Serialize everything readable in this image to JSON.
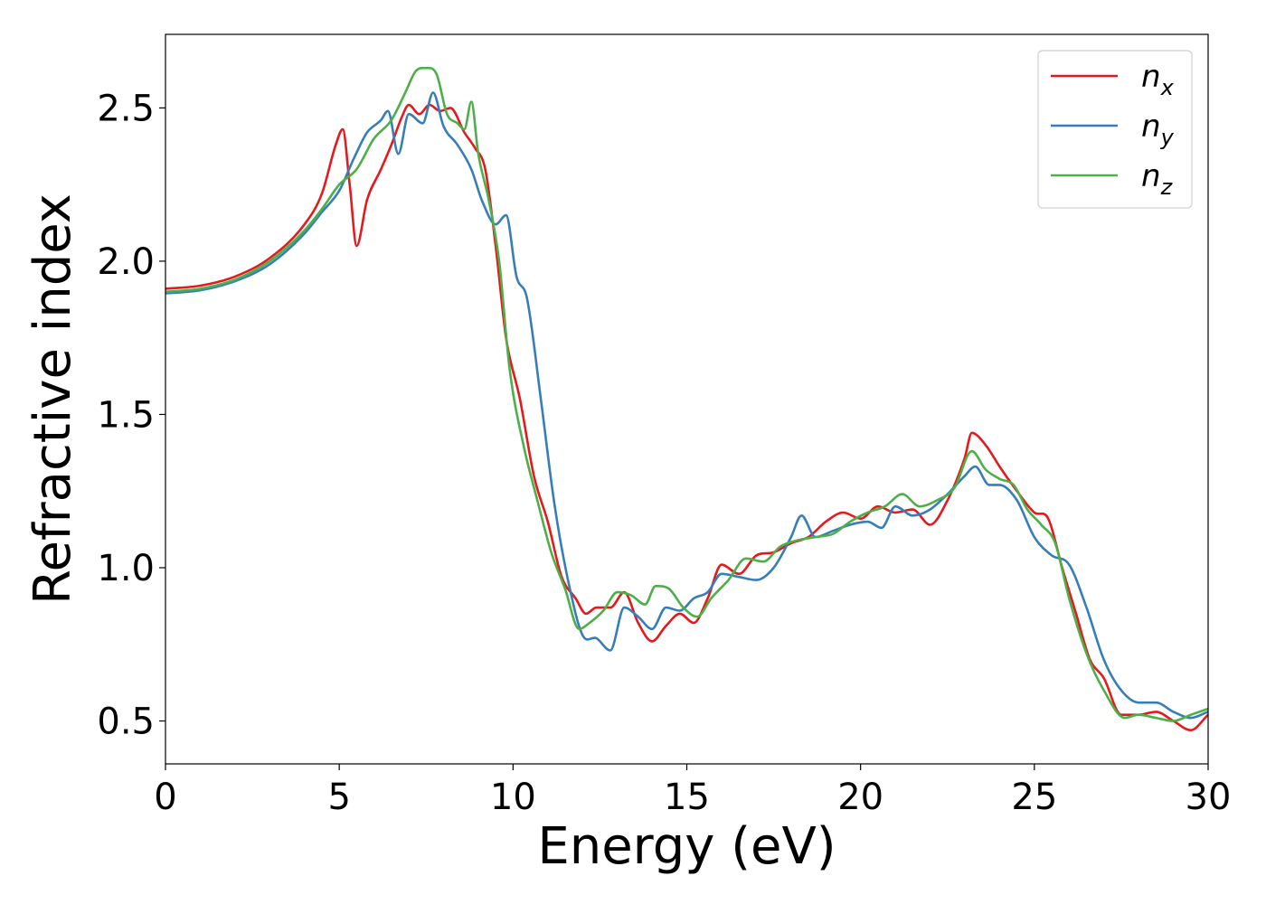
{
  "chart_data": {
    "type": "line",
    "title": "",
    "xlabel": "Energy (eV)",
    "ylabel": "Refractive index",
    "xlim": [
      0,
      30
    ],
    "ylim": [
      0.36,
      2.74
    ],
    "xticks": [
      0,
      5,
      10,
      15,
      20,
      25,
      30
    ],
    "yticks": [
      0.5,
      1.0,
      1.5,
      2.0,
      2.5
    ],
    "xtick_labels": [
      "0",
      "5",
      "10",
      "15",
      "20",
      "25",
      "30"
    ],
    "ytick_labels": [
      "0.5",
      "1.0",
      "1.5",
      "2.0",
      "2.5"
    ],
    "grid": false,
    "legend_position": "top-right",
    "series": [
      {
        "name": "n",
        "subscript": "x",
        "color": "#e41a1c",
        "points": [
          [
            0,
            1.91
          ],
          [
            1,
            1.92
          ],
          [
            2,
            1.95
          ],
          [
            3,
            2.01
          ],
          [
            4,
            2.12
          ],
          [
            4.5,
            2.22
          ],
          [
            4.9,
            2.38
          ],
          [
            5.1,
            2.43
          ],
          [
            5.3,
            2.25
          ],
          [
            5.5,
            2.05
          ],
          [
            5.8,
            2.2
          ],
          [
            6.2,
            2.3
          ],
          [
            6.5,
            2.38
          ],
          [
            6.8,
            2.47
          ],
          [
            7.0,
            2.51
          ],
          [
            7.3,
            2.48
          ],
          [
            7.6,
            2.51
          ],
          [
            7.9,
            2.49
          ],
          [
            8.2,
            2.5
          ],
          [
            8.6,
            2.42
          ],
          [
            8.9,
            2.37
          ],
          [
            9.2,
            2.3
          ],
          [
            9.5,
            2.05
          ],
          [
            9.8,
            1.75
          ],
          [
            10.2,
            1.55
          ],
          [
            10.6,
            1.3
          ],
          [
            11.0,
            1.15
          ],
          [
            11.4,
            0.97
          ],
          [
            11.8,
            0.9
          ],
          [
            12.1,
            0.85
          ],
          [
            12.4,
            0.87
          ],
          [
            12.8,
            0.87
          ],
          [
            13.2,
            0.92
          ],
          [
            13.6,
            0.82
          ],
          [
            14.0,
            0.76
          ],
          [
            14.4,
            0.81
          ],
          [
            14.8,
            0.85
          ],
          [
            15.2,
            0.82
          ],
          [
            15.6,
            0.9
          ],
          [
            16.0,
            1.01
          ],
          [
            16.5,
            0.98
          ],
          [
            17.0,
            1.04
          ],
          [
            17.5,
            1.05
          ],
          [
            18.0,
            1.08
          ],
          [
            18.5,
            1.1
          ],
          [
            19.0,
            1.15
          ],
          [
            19.5,
            1.18
          ],
          [
            20.0,
            1.16
          ],
          [
            20.5,
            1.2
          ],
          [
            21.0,
            1.18
          ],
          [
            21.5,
            1.19
          ],
          [
            22.0,
            1.14
          ],
          [
            22.5,
            1.22
          ],
          [
            23.0,
            1.36
          ],
          [
            23.2,
            1.44
          ],
          [
            23.6,
            1.4
          ],
          [
            24.0,
            1.33
          ],
          [
            24.5,
            1.25
          ],
          [
            25.0,
            1.18
          ],
          [
            25.4,
            1.16
          ],
          [
            25.8,
            1.0
          ],
          [
            26.2,
            0.85
          ],
          [
            26.6,
            0.7
          ],
          [
            27.0,
            0.64
          ],
          [
            27.5,
            0.52
          ],
          [
            28.0,
            0.52
          ],
          [
            28.5,
            0.53
          ],
          [
            29.0,
            0.5
          ],
          [
            29.5,
            0.47
          ],
          [
            30.0,
            0.52
          ]
        ]
      },
      {
        "name": "n",
        "subscript": "y",
        "color": "#377eb8",
        "points": [
          [
            0,
            1.895
          ],
          [
            1,
            1.905
          ],
          [
            2,
            1.935
          ],
          [
            3,
            1.99
          ],
          [
            4,
            2.09
          ],
          [
            4.5,
            2.16
          ],
          [
            5.0,
            2.23
          ],
          [
            5.4,
            2.33
          ],
          [
            5.8,
            2.42
          ],
          [
            6.2,
            2.46
          ],
          [
            6.4,
            2.49
          ],
          [
            6.7,
            2.35
          ],
          [
            7.0,
            2.48
          ],
          [
            7.4,
            2.45
          ],
          [
            7.7,
            2.55
          ],
          [
            8.0,
            2.44
          ],
          [
            8.4,
            2.38
          ],
          [
            8.8,
            2.3
          ],
          [
            9.1,
            2.2
          ],
          [
            9.5,
            2.12
          ],
          [
            9.8,
            2.15
          ],
          [
            10.1,
            1.95
          ],
          [
            10.4,
            1.88
          ],
          [
            10.8,
            1.55
          ],
          [
            11.2,
            1.2
          ],
          [
            11.6,
            0.95
          ],
          [
            12.0,
            0.78
          ],
          [
            12.4,
            0.77
          ],
          [
            12.8,
            0.73
          ],
          [
            13.2,
            0.87
          ],
          [
            13.6,
            0.84
          ],
          [
            14.0,
            0.8
          ],
          [
            14.4,
            0.87
          ],
          [
            14.8,
            0.86
          ],
          [
            15.2,
            0.9
          ],
          [
            15.6,
            0.92
          ],
          [
            16.0,
            0.98
          ],
          [
            16.5,
            0.97
          ],
          [
            17.0,
            0.96
          ],
          [
            17.5,
            1.0
          ],
          [
            18.0,
            1.1
          ],
          [
            18.3,
            1.17
          ],
          [
            18.7,
            1.1
          ],
          [
            19.2,
            1.12
          ],
          [
            19.7,
            1.14
          ],
          [
            20.2,
            1.15
          ],
          [
            20.6,
            1.13
          ],
          [
            21.0,
            1.2
          ],
          [
            21.5,
            1.17
          ],
          [
            22.0,
            1.19
          ],
          [
            22.5,
            1.24
          ],
          [
            23.0,
            1.3
          ],
          [
            23.3,
            1.33
          ],
          [
            23.7,
            1.27
          ],
          [
            24.0,
            1.27
          ],
          [
            24.5,
            1.22
          ],
          [
            25.0,
            1.1
          ],
          [
            25.5,
            1.04
          ],
          [
            26.0,
            1.01
          ],
          [
            26.5,
            0.87
          ],
          [
            27.0,
            0.7
          ],
          [
            27.5,
            0.6
          ],
          [
            28.0,
            0.56
          ],
          [
            28.5,
            0.56
          ],
          [
            29.0,
            0.53
          ],
          [
            29.5,
            0.51
          ],
          [
            30.0,
            0.53
          ]
        ]
      },
      {
        "name": "n",
        "subscript": "z",
        "color": "#4daf4a",
        "points": [
          [
            0,
            1.9
          ],
          [
            1,
            1.91
          ],
          [
            2,
            1.94
          ],
          [
            3,
            2.0
          ],
          [
            4,
            2.1
          ],
          [
            4.5,
            2.17
          ],
          [
            5.0,
            2.25
          ],
          [
            5.5,
            2.3
          ],
          [
            6.0,
            2.4
          ],
          [
            6.5,
            2.46
          ],
          [
            6.9,
            2.55
          ],
          [
            7.2,
            2.62
          ],
          [
            7.5,
            2.63
          ],
          [
            7.8,
            2.61
          ],
          [
            8.1,
            2.48
          ],
          [
            8.4,
            2.45
          ],
          [
            8.6,
            2.43
          ],
          [
            8.8,
            2.52
          ],
          [
            9.0,
            2.35
          ],
          [
            9.3,
            2.2
          ],
          [
            9.6,
            2.0
          ],
          [
            9.9,
            1.65
          ],
          [
            10.3,
            1.4
          ],
          [
            10.7,
            1.22
          ],
          [
            11.1,
            1.05
          ],
          [
            11.5,
            0.93
          ],
          [
            11.9,
            0.8
          ],
          [
            12.2,
            0.82
          ],
          [
            12.6,
            0.86
          ],
          [
            13.0,
            0.92
          ],
          [
            13.4,
            0.91
          ],
          [
            13.8,
            0.88
          ],
          [
            14.1,
            0.94
          ],
          [
            14.5,
            0.93
          ],
          [
            14.9,
            0.87
          ],
          [
            15.3,
            0.84
          ],
          [
            15.7,
            0.9
          ],
          [
            16.2,
            0.96
          ],
          [
            16.7,
            1.03
          ],
          [
            17.2,
            1.02
          ],
          [
            17.7,
            1.07
          ],
          [
            18.2,
            1.09
          ],
          [
            18.7,
            1.1
          ],
          [
            19.2,
            1.11
          ],
          [
            19.7,
            1.15
          ],
          [
            20.2,
            1.18
          ],
          [
            20.7,
            1.2
          ],
          [
            21.2,
            1.24
          ],
          [
            21.7,
            1.2
          ],
          [
            22.2,
            1.22
          ],
          [
            22.7,
            1.26
          ],
          [
            23.2,
            1.38
          ],
          [
            23.6,
            1.32
          ],
          [
            24.0,
            1.29
          ],
          [
            24.4,
            1.27
          ],
          [
            24.8,
            1.19
          ],
          [
            25.2,
            1.14
          ],
          [
            25.6,
            1.08
          ],
          [
            26.0,
            0.9
          ],
          [
            26.5,
            0.72
          ],
          [
            27.0,
            0.6
          ],
          [
            27.6,
            0.51
          ],
          [
            28.0,
            0.52
          ],
          [
            28.5,
            0.51
          ],
          [
            29.0,
            0.5
          ],
          [
            29.5,
            0.52
          ],
          [
            30.0,
            0.54
          ]
        ]
      }
    ]
  }
}
